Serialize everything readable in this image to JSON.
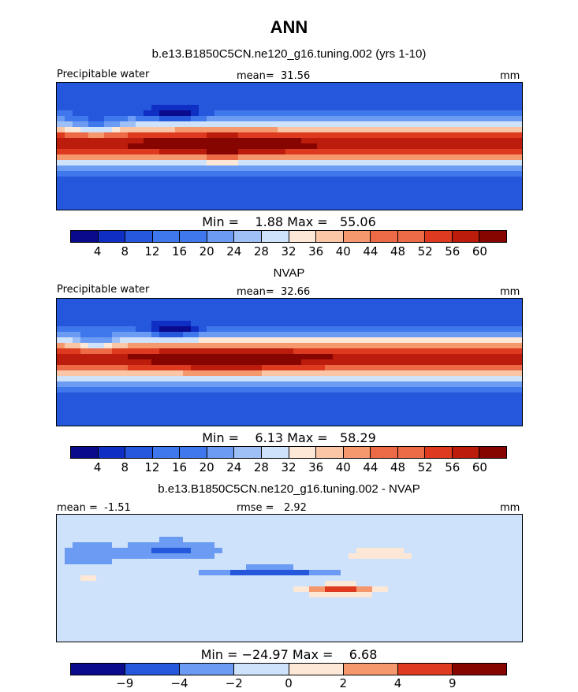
{
  "figure": {
    "title": "ANN"
  },
  "colors": {
    "ramp": [
      "#0a0a8c",
      "#0f2fc4",
      "#2557dc",
      "#3f77ec",
      "#6b9bf2",
      "#9ec0f7",
      "#cfe2fb",
      "#fde7d6",
      "#fbc6a6",
      "#f5986e",
      "#ec6a45",
      "#dd3a1f",
      "#bb1c0c",
      "#870500"
    ],
    "land_outline": "#000000"
  },
  "chart_data": [
    {
      "type": "heatmap",
      "title": "b.e13.B1850C5CN.ne120_g16.tuning.002 (yrs 1-10)",
      "left_label": "Precipitable water",
      "center_label": "mean=  31.56",
      "right_label": "mm",
      "minmax": "Min =    1.88 Max =   55.06",
      "min": 1.88,
      "max": 55.06,
      "mean": 31.56,
      "levels": [
        "4",
        "8",
        "12",
        "16",
        "20",
        "24",
        "28",
        "32",
        "36",
        "40",
        "44",
        "48",
        "52",
        "56",
        "60"
      ],
      "field": "model"
    },
    {
      "type": "heatmap",
      "title": "NVAP",
      "left_label": "Precipitable water",
      "center_label": "mean=  32.66",
      "right_label": "mm",
      "minmax": "Min =    6.13 Max =   58.29",
      "min": 6.13,
      "max": 58.29,
      "mean": 32.66,
      "levels": [
        "4",
        "8",
        "12",
        "16",
        "20",
        "24",
        "28",
        "32",
        "36",
        "40",
        "44",
        "48",
        "52",
        "56",
        "60"
      ],
      "field": "obs"
    },
    {
      "type": "heatmap",
      "title": "b.e13.B1850C5CN.ne120_g16.tuning.002 - NVAP",
      "left_label": "mean =  -1.51",
      "center_label": "rmse =   2.92",
      "right_label": "mm",
      "minmax": "Min = −24.97 Max =    6.68",
      "min": -24.97,
      "max": 6.68,
      "mean": -1.51,
      "rmse": 2.92,
      "levels": [
        "−9",
        "−4",
        "−2",
        "0",
        "2",
        "4",
        "9"
      ],
      "field": "diff"
    }
  ]
}
